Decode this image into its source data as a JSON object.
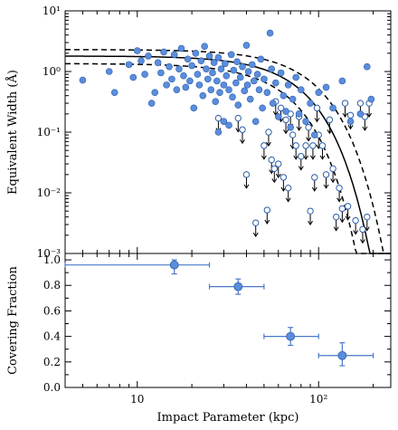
{
  "figure": {
    "xlabel": "Impact Parameter (kpc)",
    "colors": {
      "fill": "#5b8ddd",
      "edge": "#2d5ea8",
      "line": "#000000",
      "errbar": "#4a78c9"
    }
  },
  "chart_data": [
    {
      "type": "scatter",
      "panel": "top",
      "title": "",
      "xlabel": "",
      "ylabel": "Equivalent Width (Å)",
      "xscale": "log",
      "yscale": "log",
      "xlim": [
        4,
        250
      ],
      "ylim": [
        0.001,
        10
      ],
      "x_tick_labels": [
        "10",
        "10²"
      ],
      "y_tick_labels": [
        "10⁻³",
        "10⁻²",
        "10⁻¹",
        "10⁰",
        "10¹"
      ],
      "grid": false,
      "series": [
        {
          "kind": "detections",
          "marker": "filled circle",
          "points": [
            [
              5,
              0.72
            ],
            [
              7,
              1.0
            ],
            [
              7.5,
              0.45
            ],
            [
              9,
              1.3
            ],
            [
              9.5,
              0.8
            ],
            [
              10,
              2.2
            ],
            [
              10.5,
              1.5
            ],
            [
              11,
              0.9
            ],
            [
              11.5,
              1.8
            ],
            [
              12,
              0.3
            ],
            [
              12.5,
              0.45
            ],
            [
              13,
              1.4
            ],
            [
              13.5,
              0.95
            ],
            [
              14,
              2.1
            ],
            [
              14.5,
              0.6
            ],
            [
              15,
              1.2
            ],
            [
              15.5,
              0.75
            ],
            [
              16,
              1.9
            ],
            [
              16.5,
              0.5
            ],
            [
              17,
              1.1
            ],
            [
              17.5,
              2.4
            ],
            [
              18,
              0.85
            ],
            [
              18.5,
              0.55
            ],
            [
              19,
              1.6
            ],
            [
              19.5,
              0.7
            ],
            [
              20,
              1.25
            ],
            [
              20.5,
              0.25
            ],
            [
              21,
              2.0
            ],
            [
              21.5,
              0.9
            ],
            [
              22,
              0.6
            ],
            [
              22.5,
              1.5
            ],
            [
              23,
              0.4
            ],
            [
              23.5,
              2.6
            ],
            [
              24,
              1.1
            ],
            [
              24.5,
              0.75
            ],
            [
              25,
              1.8
            ],
            [
              25.5,
              0.5
            ],
            [
              26,
              0.95
            ],
            [
              26.5,
              1.4
            ],
            [
              27,
              0.32
            ],
            [
              27.5,
              0.7
            ],
            [
              28,
              1.7
            ],
            [
              28.5,
              0.45
            ],
            [
              29,
              1.1
            ],
            [
              30,
              0.6
            ],
            [
              30.5,
              1.35
            ],
            [
              31,
              0.85
            ],
            [
              32,
              0.5
            ],
            [
              33,
              1.9
            ],
            [
              33.5,
              0.38
            ],
            [
              34,
              1.05
            ],
            [
              35,
              0.65
            ],
            [
              35.5,
              1.45
            ],
            [
              36,
              0.28
            ],
            [
              37,
              0.8
            ],
            [
              38,
              1.2
            ],
            [
              39,
              0.48
            ],
            [
              40,
              2.7
            ],
            [
              40.5,
              0.6
            ],
            [
              41,
              1.0
            ],
            [
              42,
              0.35
            ],
            [
              43,
              1.3
            ],
            [
              44,
              0.7
            ],
            [
              45,
              0.15
            ],
            [
              46,
              0.9
            ],
            [
              47,
              0.5
            ],
            [
              48,
              1.6
            ],
            [
              49,
              0.25
            ],
            [
              50,
              0.75
            ],
            [
              52,
              0.45
            ],
            [
              54,
              4.3
            ],
            [
              55,
              1.1
            ],
            [
              56,
              0.3
            ],
            [
              58,
              0.65
            ],
            [
              60,
              0.18
            ],
            [
              62,
              0.95
            ],
            [
              64,
              0.4
            ],
            [
              66,
              0.22
            ],
            [
              68,
              0.6
            ],
            [
              70,
              0.12
            ],
            [
              72,
              0.35
            ],
            [
              75,
              0.8
            ],
            [
              78,
              0.2
            ],
            [
              80,
              0.5
            ],
            [
              85,
              0.15
            ],
            [
              90,
              0.3
            ],
            [
              95,
              0.09
            ],
            [
              100,
              0.45
            ],
            [
              110,
              0.55
            ],
            [
              120,
              0.25
            ],
            [
              135,
              0.7
            ],
            [
              150,
              0.15
            ],
            [
              170,
              0.2
            ],
            [
              185,
              1.2
            ],
            [
              195,
              0.35
            ],
            [
              30,
              0.15
            ],
            [
              32,
              0.13
            ],
            [
              28,
              0.1
            ]
          ]
        },
        {
          "kind": "upper limits",
          "marker": "open circle with downward arrow",
          "points": [
            [
              28,
              0.17
            ],
            [
              36,
              0.17
            ],
            [
              38,
              0.11
            ],
            [
              40,
              0.02
            ],
            [
              50,
              0.06
            ],
            [
              52,
              0.0052
            ],
            [
              53,
              0.1
            ],
            [
              55,
              0.035
            ],
            [
              57,
              0.025
            ],
            [
              58,
              0.32
            ],
            [
              60,
              0.03
            ],
            [
              62,
              0.25
            ],
            [
              64,
              0.018
            ],
            [
              66,
              0.16
            ],
            [
              68,
              0.012
            ],
            [
              70,
              0.2
            ],
            [
              72,
              0.09
            ],
            [
              75,
              0.06
            ],
            [
              78,
              0.18
            ],
            [
              80,
              0.04
            ],
            [
              85,
              0.06
            ],
            [
              88,
              0.12
            ],
            [
              90,
              0.005
            ],
            [
              93,
              0.06
            ],
            [
              95,
              0.018
            ],
            [
              98,
              0.25
            ],
            [
              100,
              0.09
            ],
            [
              105,
              0.06
            ],
            [
              110,
              0.02
            ],
            [
              115,
              0.16
            ],
            [
              120,
              0.025
            ],
            [
              125,
              0.004
            ],
            [
              130,
              0.012
            ],
            [
              135,
              0.0055
            ],
            [
              140,
              0.3
            ],
            [
              145,
              0.006
            ],
            [
              150,
              0.19
            ],
            [
              160,
              0.0035
            ],
            [
              170,
              0.3
            ],
            [
              175,
              0.0025
            ],
            [
              180,
              0.18
            ],
            [
              185,
              0.004
            ],
            [
              190,
              0.3
            ],
            [
              45,
              0.0032
            ]
          ]
        }
      ],
      "fit_lines": [
        {
          "style": "solid",
          "description": "best-fit model"
        },
        {
          "style": "dashed",
          "description": "upper bound"
        },
        {
          "style": "dashed",
          "description": "lower bound"
        }
      ]
    },
    {
      "type": "scatter",
      "panel": "bottom",
      "title": "",
      "xlabel": "Impact Parameter (kpc)",
      "ylabel": "Covering Fraction",
      "xscale": "log",
      "yscale": "linear",
      "xlim": [
        4,
        250
      ],
      "ylim": [
        0.0,
        1.05
      ],
      "x_tick_labels": [
        "10",
        "10²"
      ],
      "y_tick_labels": [
        "0.0",
        "0.2",
        "0.4",
        "0.6",
        "0.8",
        "1.0"
      ],
      "grid": false,
      "points": [
        {
          "x": 16,
          "y": 0.96,
          "xerr": [
            4,
            25
          ],
          "yerr": [
            0.89,
            1.0
          ]
        },
        {
          "x": 36,
          "y": 0.79,
          "xerr": [
            25,
            50
          ],
          "yerr": [
            0.73,
            0.85
          ]
        },
        {
          "x": 70,
          "y": 0.4,
          "xerr": [
            50,
            100
          ],
          "yerr": [
            0.33,
            0.47
          ]
        },
        {
          "x": 135,
          "y": 0.25,
          "xerr": [
            100,
            200
          ],
          "yerr": [
            0.17,
            0.35
          ]
        }
      ]
    }
  ]
}
